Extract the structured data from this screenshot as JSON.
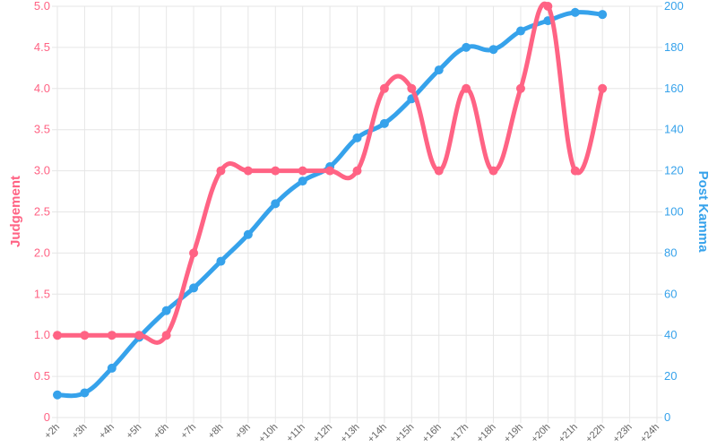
{
  "chart_data": {
    "type": "line",
    "x": [
      "+2h",
      "+3h",
      "+4h",
      "+5h",
      "+6h",
      "+7h",
      "+8h",
      "+9h",
      "+10h",
      "+11h",
      "+12h",
      "+13h",
      "+14h",
      "+15h",
      "+16h",
      "+17h",
      "+18h",
      "+19h",
      "+20h",
      "+21h",
      "+22h",
      "+23h",
      "+24h"
    ],
    "series": [
      {
        "name": "Judgement",
        "axis": "left",
        "color": "#ff6384",
        "values": [
          1.0,
          1.0,
          1.0,
          1.0,
          1.0,
          2.0,
          3.0,
          3.0,
          3.0,
          3.0,
          3.0,
          3.0,
          4.0,
          4.0,
          3.0,
          4.0,
          3.0,
          4.0,
          5.0,
          3.0,
          4.0,
          null,
          null
        ]
      },
      {
        "name": "Post Kamma",
        "axis": "right",
        "color": "#36a2eb",
        "values": [
          11,
          12,
          24,
          39,
          52,
          63,
          76,
          89,
          104,
          115,
          122,
          136,
          143,
          155,
          169,
          180,
          179,
          188,
          193,
          197,
          196,
          null,
          null
        ]
      }
    ],
    "ylabel_left": "Judgement",
    "ylabel_right": "Post Kamma",
    "ylim_left": [
      0,
      5
    ],
    "yticks_left": [
      "0",
      "0.5",
      "1.0",
      "1.5",
      "2.0",
      "2.5",
      "3.0",
      "3.5",
      "4.0",
      "4.5",
      "5.0"
    ],
    "ylim_right": [
      0,
      200
    ],
    "yticks_right": [
      "0",
      "20",
      "40",
      "60",
      "80",
      "100",
      "120",
      "140",
      "160",
      "180",
      "200"
    ],
    "grid": true
  }
}
